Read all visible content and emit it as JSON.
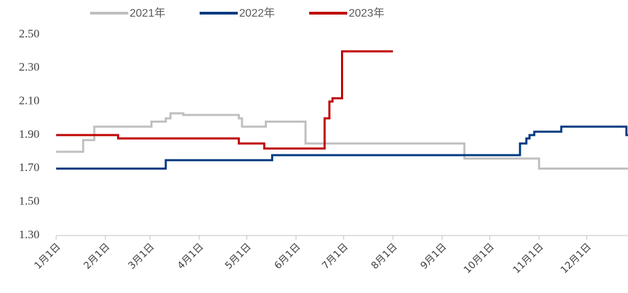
{
  "chart_data": {
    "type": "line",
    "step": true,
    "xlim": [
      "01-01",
      "12-27"
    ],
    "xticks": [
      {
        "value": "01-01",
        "label": "1月1日"
      },
      {
        "value": "02-01",
        "label": "2月1日"
      },
      {
        "value": "03-01",
        "label": "3月1日"
      },
      {
        "value": "04-01",
        "label": "4月1日"
      },
      {
        "value": "05-01",
        "label": "5月1日"
      },
      {
        "value": "06-01",
        "label": "6月1日"
      },
      {
        "value": "07-01",
        "label": "7月1日"
      },
      {
        "value": "08-01",
        "label": "8月1日"
      },
      {
        "value": "09-01",
        "label": "9月1日"
      },
      {
        "value": "10-01",
        "label": "10月1日"
      },
      {
        "value": "11-01",
        "label": "11月1日"
      },
      {
        "value": "12-01",
        "label": "12月1日"
      }
    ],
    "ylim": [
      1.3,
      2.5
    ],
    "yticks": [
      {
        "value": 1.3,
        "label": "1.30"
      },
      {
        "value": 1.5,
        "label": "1.50"
      },
      {
        "value": 1.7,
        "label": "1.70"
      },
      {
        "value": 1.9,
        "label": "1.90"
      },
      {
        "value": 2.1,
        "label": "2.10"
      },
      {
        "value": 2.3,
        "label": "2.30"
      },
      {
        "value": 2.5,
        "label": "2.50"
      }
    ],
    "grid": false,
    "series": [
      {
        "name": "2021年",
        "color": "#bfbfbf",
        "x": [
          "01-01",
          "01-18",
          "01-25",
          "03-02",
          "03-11",
          "03-14",
          "03-22",
          "04-26",
          "04-28",
          "05-13",
          "06-07",
          "09-15",
          "11-01",
          "12-27"
        ],
        "values": [
          1.8,
          1.87,
          1.95,
          1.98,
          2.0,
          2.03,
          2.02,
          2.0,
          1.95,
          1.98,
          1.85,
          1.76,
          1.7,
          1.7
        ]
      },
      {
        "name": "2022年",
        "color": "#003a80",
        "x": [
          "01-01",
          "03-11",
          "05-17",
          "10-20",
          "10-24",
          "10-26",
          "10-29",
          "11-15",
          "12-26",
          "12-27"
        ],
        "values": [
          1.7,
          1.75,
          1.78,
          1.85,
          1.88,
          1.9,
          1.92,
          1.95,
          1.9,
          1.9
        ]
      },
      {
        "name": "2023年",
        "color": "#c00000",
        "x": [
          "01-01",
          "02-09",
          "04-26",
          "05-12",
          "06-19",
          "06-22",
          "06-24",
          "06-30",
          "08-01"
        ],
        "values": [
          1.9,
          1.88,
          1.85,
          1.82,
          2.0,
          2.1,
          2.12,
          2.4,
          2.4
        ]
      }
    ]
  }
}
